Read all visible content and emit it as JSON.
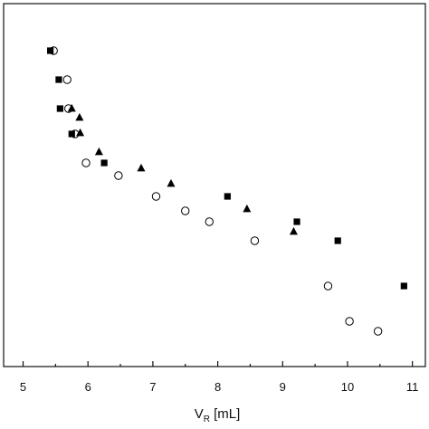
{
  "chart_data": {
    "type": "scatter",
    "title": "",
    "xlabel": "V",
    "xlabel_subscript": "R",
    "xlabel_unit": " [mL]",
    "ylabel": "",
    "xlim": [
      4.7,
      11.2
    ],
    "xticks": [
      "5",
      "6",
      "7",
      "8",
      "9",
      "10",
      "11"
    ],
    "grid": false,
    "legend": "none",
    "series": [
      {
        "marker": "filled-square",
        "color": "#000000",
        "points": [
          [
            5.42,
            56
          ],
          [
            5.55,
            88
          ],
          [
            5.57,
            120
          ],
          [
            5.75,
            148
          ],
          [
            6.25,
            180
          ],
          [
            8.15,
            217
          ],
          [
            9.22,
            245
          ],
          [
            9.85,
            266
          ],
          [
            10.87,
            316
          ]
        ]
      },
      {
        "marker": "open-circle",
        "color": "#000000",
        "points": [
          [
            5.47,
            56
          ],
          [
            5.68,
            88
          ],
          [
            5.7,
            120
          ],
          [
            5.8,
            148
          ],
          [
            5.97,
            180
          ],
          [
            6.47,
            194
          ],
          [
            7.05,
            217
          ],
          [
            7.5,
            233
          ],
          [
            7.87,
            245
          ],
          [
            8.57,
            266
          ],
          [
            9.7,
            316
          ],
          [
            10.03,
            355
          ],
          [
            10.47,
            366
          ]
        ]
      },
      {
        "marker": "filled-triangle",
        "color": "#000000",
        "points": [
          [
            5.75,
            120
          ],
          [
            5.87,
            130
          ],
          [
            5.88,
            147
          ],
          [
            6.17,
            168
          ],
          [
            6.82,
            186
          ],
          [
            7.28,
            203
          ],
          [
            8.45,
            231
          ],
          [
            9.17,
            256
          ]
        ]
      }
    ]
  }
}
